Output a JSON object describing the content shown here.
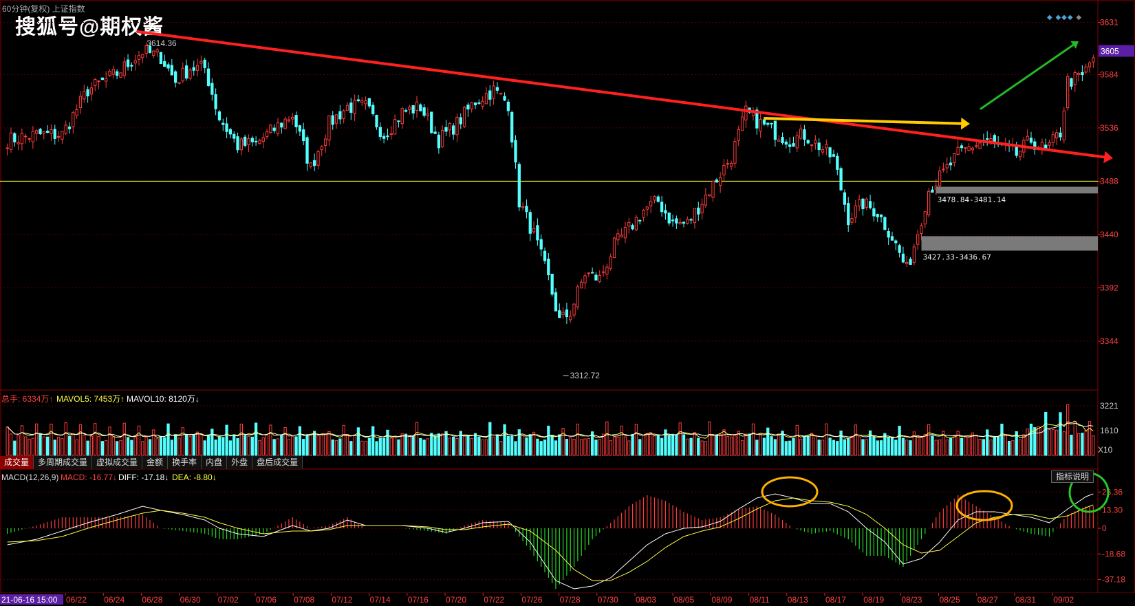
{
  "header": {
    "title": "60分钟(复权) 上证指数",
    "watermark": "搜狐号@期权酱",
    "high_label": "3614.36",
    "low_label": "3312.72"
  },
  "volume_bar": {
    "total_label": "总手: 6334万↑",
    "mavol5_label": "MAVOL5: 7453万↑",
    "mavol10_label": "MAVOL10: 8120万↓",
    "axis_top": "3221",
    "axis_mid": "1610",
    "axis_unit": "X10"
  },
  "tabs": [
    "成交量",
    "多周期成交量",
    "虚拟成交量",
    "金额",
    "换手率",
    "内盘",
    "外盘",
    "盘后成交量"
  ],
  "macd_bar": {
    "name_label": "MACD(12,26,9)",
    "macd_label": "MACD: -16.77↓",
    "diff_label": "DIFF: -17.18↓",
    "dea_label": "DEA: -8.80↓",
    "help_button": "指标说明"
  },
  "colors": {
    "up": "#ff3b3b",
    "down": "#54ffff",
    "grid": "#5a0000",
    "hline": "#ffff33",
    "trend_red": "#ff2020",
    "trend_yellow": "#ffcc00",
    "trend_green": "#22bb22",
    "circle": "#ffb000",
    "circle_green": "#22cc22"
  },
  "chart_data": {
    "type": "candlestick",
    "price_axis": {
      "ticks": [
        3631,
        3584,
        3536,
        3488,
        3440,
        3392,
        3344
      ],
      "ylim": [
        3300,
        3640
      ],
      "current_price": "3605"
    },
    "hline": 3488,
    "zones": [
      {
        "low": 3478.84,
        "high": 3481.14,
        "label": "3478.84-3481.14"
      },
      {
        "low": 3427.33,
        "high": 3436.67,
        "label": "3427.33-3436.67"
      }
    ],
    "x_ticks": [
      "21-06-16 15:00",
      "06/22",
      "06/24",
      "06/28",
      "06/30",
      "07/02",
      "07/06",
      "07/08",
      "07/12",
      "07/14",
      "07/16",
      "07/20",
      "07/22",
      "07/26",
      "07/28",
      "07/30",
      "08/03",
      "08/05",
      "08/09",
      "08/11",
      "08/13",
      "08/17",
      "08/19",
      "08/23",
      "08/25",
      "08/27",
      "08/31",
      "09/02"
    ],
    "close_anchors": [
      [
        0,
        3525
      ],
      [
        8,
        3530
      ],
      [
        15,
        3530
      ],
      [
        22,
        3570
      ],
      [
        30,
        3585
      ],
      [
        37,
        3605
      ],
      [
        42,
        3600
      ],
      [
        46,
        3578
      ],
      [
        50,
        3590
      ],
      [
        54,
        3590
      ],
      [
        58,
        3545
      ],
      [
        63,
        3520
      ],
      [
        68,
        3522
      ],
      [
        73,
        3535
      ],
      [
        78,
        3548
      ],
      [
        83,
        3500
      ],
      [
        88,
        3540
      ],
      [
        93,
        3555
      ],
      [
        98,
        3555
      ],
      [
        103,
        3530
      ],
      [
        108,
        3550
      ],
      [
        113,
        3555
      ],
      [
        118,
        3525
      ],
      [
        123,
        3540
      ],
      [
        128,
        3560
      ],
      [
        133,
        3570
      ],
      [
        137,
        3558
      ],
      [
        140,
        3470
      ],
      [
        144,
        3440
      ],
      [
        148,
        3400
      ],
      [
        151,
        3362
      ],
      [
        154,
        3370
      ],
      [
        158,
        3405
      ],
      [
        162,
        3400
      ],
      [
        166,
        3430
      ],
      [
        170,
        3445
      ],
      [
        174,
        3462
      ],
      [
        178,
        3470
      ],
      [
        182,
        3450
      ],
      [
        186,
        3450
      ],
      [
        190,
        3470
      ],
      [
        194,
        3490
      ],
      [
        198,
        3510
      ],
      [
        202,
        3550
      ],
      [
        206,
        3540
      ],
      [
        210,
        3532
      ],
      [
        214,
        3525
      ],
      [
        218,
        3530
      ],
      [
        222,
        3520
      ],
      [
        226,
        3508
      ],
      [
        230,
        3455
      ],
      [
        234,
        3468
      ],
      [
        238,
        3460
      ],
      [
        242,
        3438
      ],
      [
        246,
        3408
      ],
      [
        248,
        3430
      ],
      [
        252,
        3480
      ],
      [
        256,
        3495
      ],
      [
        260,
        3512
      ],
      [
        264,
        3520
      ],
      [
        268,
        3525
      ],
      [
        272,
        3518
      ],
      [
        276,
        3512
      ],
      [
        280,
        3525
      ],
      [
        284,
        3515
      ],
      [
        288,
        3532
      ],
      [
        290,
        3578
      ],
      [
        294,
        3582
      ],
      [
        297,
        3600
      ]
    ],
    "macd": {
      "axis_ticks": [
        "26.36",
        "13.30",
        "0",
        "-18.68",
        "-37.18"
      ],
      "ylim": [
        -46,
        34
      ],
      "diff_anchors": [
        [
          0,
          -12
        ],
        [
          8,
          -8
        ],
        [
          15,
          -2
        ],
        [
          22,
          4
        ],
        [
          30,
          10
        ],
        [
          37,
          16
        ],
        [
          42,
          13
        ],
        [
          48,
          10
        ],
        [
          54,
          6
        ],
        [
          58,
          0
        ],
        [
          63,
          -4
        ],
        [
          70,
          -6
        ],
        [
          78,
          2
        ],
        [
          83,
          -2
        ],
        [
          88,
          0
        ],
        [
          93,
          6
        ],
        [
          98,
          2
        ],
        [
          103,
          2
        ],
        [
          108,
          2
        ],
        [
          115,
          0
        ],
        [
          120,
          -3
        ],
        [
          125,
          0
        ],
        [
          130,
          4
        ],
        [
          137,
          5
        ],
        [
          143,
          -10
        ],
        [
          150,
          -38
        ],
        [
          155,
          -44
        ],
        [
          160,
          -42
        ],
        [
          165,
          -36
        ],
        [
          170,
          -24
        ],
        [
          175,
          -12
        ],
        [
          180,
          -4
        ],
        [
          185,
          0
        ],
        [
          190,
          1
        ],
        [
          195,
          5
        ],
        [
          200,
          14
        ],
        [
          205,
          22
        ],
        [
          210,
          25
        ],
        [
          215,
          22
        ],
        [
          220,
          18
        ],
        [
          225,
          18
        ],
        [
          230,
          12
        ],
        [
          235,
          0
        ],
        [
          240,
          -10
        ],
        [
          245,
          -26
        ],
        [
          250,
          -22
        ],
        [
          255,
          -10
        ],
        [
          260,
          6
        ],
        [
          265,
          12
        ],
        [
          270,
          12
        ],
        [
          275,
          10
        ],
        [
          280,
          8
        ],
        [
          285,
          4
        ],
        [
          290,
          14
        ],
        [
          295,
          23
        ],
        [
          297,
          25
        ]
      ],
      "dea_anchors": [
        [
          0,
          -10
        ],
        [
          8,
          -9
        ],
        [
          15,
          -6
        ],
        [
          22,
          0
        ],
        [
          30,
          6
        ],
        [
          37,
          11
        ],
        [
          42,
          13
        ],
        [
          48,
          11
        ],
        [
          54,
          8
        ],
        [
          58,
          4
        ],
        [
          63,
          0
        ],
        [
          70,
          -4
        ],
        [
          78,
          -2
        ],
        [
          83,
          -2
        ],
        [
          88,
          -1
        ],
        [
          93,
          2
        ],
        [
          98,
          2
        ],
        [
          103,
          2
        ],
        [
          108,
          2
        ],
        [
          115,
          1
        ],
        [
          120,
          -1
        ],
        [
          125,
          -1
        ],
        [
          130,
          1
        ],
        [
          137,
          3
        ],
        [
          143,
          -2
        ],
        [
          150,
          -16
        ],
        [
          155,
          -30
        ],
        [
          160,
          -38
        ],
        [
          165,
          -38
        ],
        [
          170,
          -32
        ],
        [
          175,
          -24
        ],
        [
          180,
          -14
        ],
        [
          185,
          -6
        ],
        [
          190,
          -2
        ],
        [
          195,
          1
        ],
        [
          200,
          7
        ],
        [
          205,
          14
        ],
        [
          210,
          20
        ],
        [
          215,
          22
        ],
        [
          220,
          20
        ],
        [
          225,
          19
        ],
        [
          230,
          16
        ],
        [
          235,
          10
        ],
        [
          240,
          0
        ],
        [
          245,
          -12
        ],
        [
          250,
          -18
        ],
        [
          255,
          -16
        ],
        [
          260,
          -6
        ],
        [
          265,
          4
        ],
        [
          270,
          8
        ],
        [
          275,
          10
        ],
        [
          280,
          10
        ],
        [
          285,
          7
        ],
        [
          290,
          9
        ],
        [
          295,
          15
        ],
        [
          297,
          17
        ]
      ]
    }
  }
}
